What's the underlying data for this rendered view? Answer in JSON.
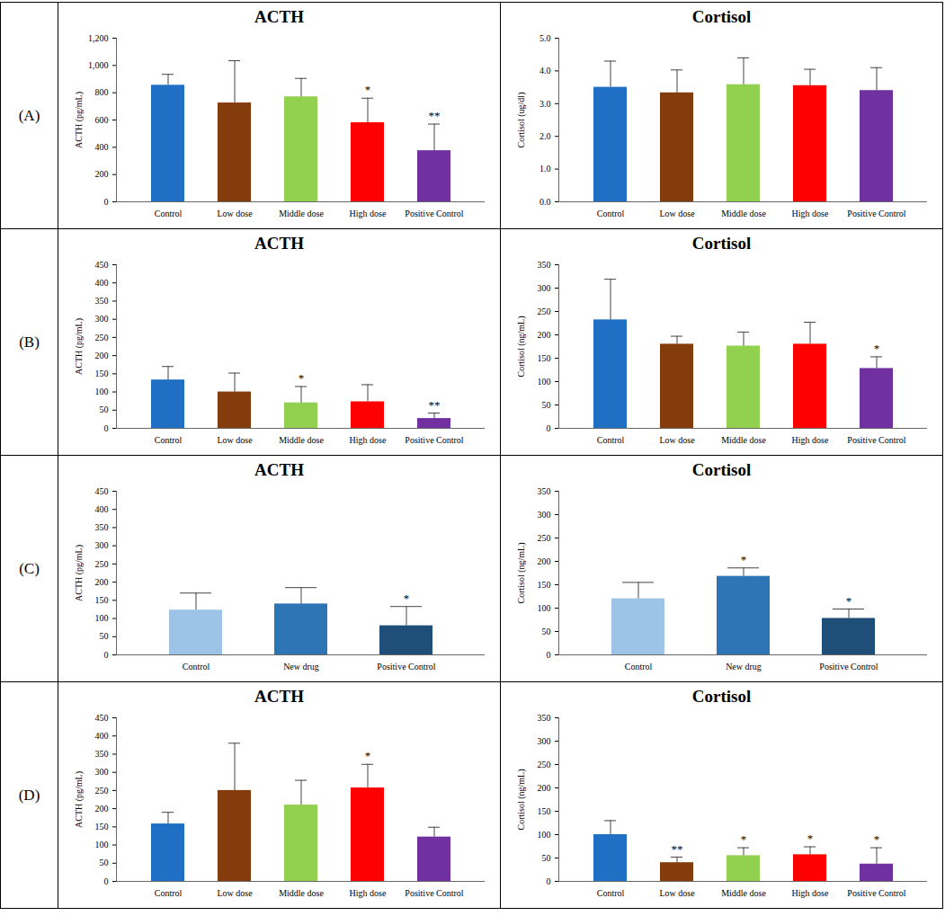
{
  "chart_data": [
    {
      "type": "bar",
      "annotation": "(A)",
      "title": "ACTH",
      "ylabel": "ACTH (pg/mL)",
      "categories": [
        "Control",
        "Low dose",
        "Middle dose",
        "High dose",
        "Positive Control"
      ],
      "values": [
        855,
        725,
        770,
        580,
        375
      ],
      "errors": [
        80,
        310,
        135,
        180,
        195
      ],
      "significance": [
        null,
        null,
        null,
        "*",
        "**"
      ],
      "colors": [
        "#1f6fc5",
        "#843c0c",
        "#92d050",
        "#ff0000",
        "#7030a0"
      ],
      "ylim": [
        0,
        1200
      ],
      "yticks": [
        0,
        200,
        400,
        600,
        800,
        1000,
        1200
      ]
    },
    {
      "type": "bar",
      "title": "Cortisol",
      "ylabel": "Cortisol (ug/dl)",
      "categories": [
        "Control",
        "Low dose",
        "Middle dose",
        "High dose",
        "Positive Control"
      ],
      "values": [
        3.5,
        3.33,
        3.58,
        3.55,
        3.4
      ],
      "errors": [
        0.8,
        0.7,
        0.82,
        0.5,
        0.7
      ],
      "significance": [
        null,
        null,
        null,
        null,
        null
      ],
      "colors": [
        "#1f6fc5",
        "#843c0c",
        "#92d050",
        "#ff0000",
        "#7030a0"
      ],
      "ylim": [
        0,
        5
      ],
      "yticks": [
        0,
        1,
        2,
        3,
        4,
        5
      ]
    },
    {
      "type": "bar",
      "annotation": "(B)",
      "title": "ACTH",
      "ylabel": "ACTH (pg/mL)",
      "categories": [
        "Control",
        "Low dose",
        "Middle dose",
        "High dose",
        "Positive Control"
      ],
      "values": [
        133,
        100,
        70,
        73,
        27
      ],
      "errors": [
        37,
        52,
        45,
        47,
        15
      ],
      "significance": [
        null,
        null,
        "*",
        null,
        "**"
      ],
      "colors": [
        "#1f6fc5",
        "#843c0c",
        "#92d050",
        "#ff0000",
        "#7030a0"
      ],
      "ylim": [
        0,
        450
      ],
      "yticks": [
        0,
        50,
        100,
        150,
        200,
        250,
        300,
        350,
        400,
        450
      ]
    },
    {
      "type": "bar",
      "title": "Cortisol",
      "ylabel": "Cortisol (ng/mL)",
      "categories": [
        "Control",
        "Low dose",
        "Middle dose",
        "High dose",
        "Positive Control"
      ],
      "values": [
        232,
        180,
        176,
        180,
        128
      ],
      "errors": [
        87,
        17,
        30,
        47,
        25
      ],
      "significance": [
        null,
        null,
        null,
        null,
        "*"
      ],
      "colors": [
        "#1f6fc5",
        "#843c0c",
        "#92d050",
        "#ff0000",
        "#7030a0"
      ],
      "ylim": [
        0,
        350
      ],
      "yticks": [
        0,
        50,
        100,
        150,
        200,
        250,
        300,
        350
      ]
    },
    {
      "type": "bar",
      "annotation": "(C)",
      "title": "ACTH",
      "ylabel": "ACTH (pg/mL)",
      "categories": [
        "Control",
        "New drug",
        "Positive Control"
      ],
      "values": [
        123,
        140,
        80
      ],
      "errors": [
        47,
        45,
        53
      ],
      "significance": [
        null,
        null,
        "*"
      ],
      "colors": [
        "#9dc3e6",
        "#2e75b6",
        "#1f4e79"
      ],
      "ylim": [
        0,
        450
      ],
      "yticks": [
        0,
        50,
        100,
        150,
        200,
        250,
        300,
        350,
        400,
        450
      ]
    },
    {
      "type": "bar",
      "title": "Cortisol",
      "ylabel": "Cortisol (ng/mL)",
      "categories": [
        "Control",
        "New drug",
        "Positive Control"
      ],
      "values": [
        120,
        168,
        78
      ],
      "errors": [
        35,
        18,
        20
      ],
      "significance": [
        null,
        "*",
        "*"
      ],
      "colors": [
        "#9dc3e6",
        "#2e75b6",
        "#1f4e79"
      ],
      "ylim": [
        0,
        350
      ],
      "yticks": [
        0,
        50,
        100,
        150,
        200,
        250,
        300,
        350
      ]
    },
    {
      "type": "bar",
      "annotation": "(D)",
      "title": "ACTH",
      "ylabel": "ACTH (pg/mL)",
      "categories": [
        "Control",
        "Low dose",
        "Middle dose",
        "High dose",
        "Positive Control"
      ],
      "values": [
        158,
        250,
        210,
        257,
        122
      ],
      "errors": [
        32,
        130,
        68,
        65,
        27
      ],
      "significance": [
        null,
        null,
        null,
        "*",
        null
      ],
      "colors": [
        "#1f6fc5",
        "#843c0c",
        "#92d050",
        "#ff0000",
        "#7030a0"
      ],
      "ylim": [
        0,
        450
      ],
      "yticks": [
        0,
        50,
        100,
        150,
        200,
        250,
        300,
        350,
        400,
        450
      ]
    },
    {
      "type": "bar",
      "title": "Cortisol",
      "ylabel": "Cortisol (ng/mL)",
      "categories": [
        "Control",
        "Low dose",
        "Middle dose",
        "High dose",
        "Positive Control"
      ],
      "values": [
        100,
        40,
        55,
        57,
        37
      ],
      "errors": [
        30,
        12,
        17,
        17,
        35
      ],
      "significance": [
        null,
        "**",
        "*",
        "*",
        "*"
      ],
      "colors": [
        "#1f6fc5",
        "#843c0c",
        "#92d050",
        "#ff0000",
        "#7030a0"
      ],
      "ylim": [
        0,
        350
      ],
      "yticks": [
        0,
        50,
        100,
        150,
        200,
        250,
        300,
        350
      ]
    }
  ]
}
